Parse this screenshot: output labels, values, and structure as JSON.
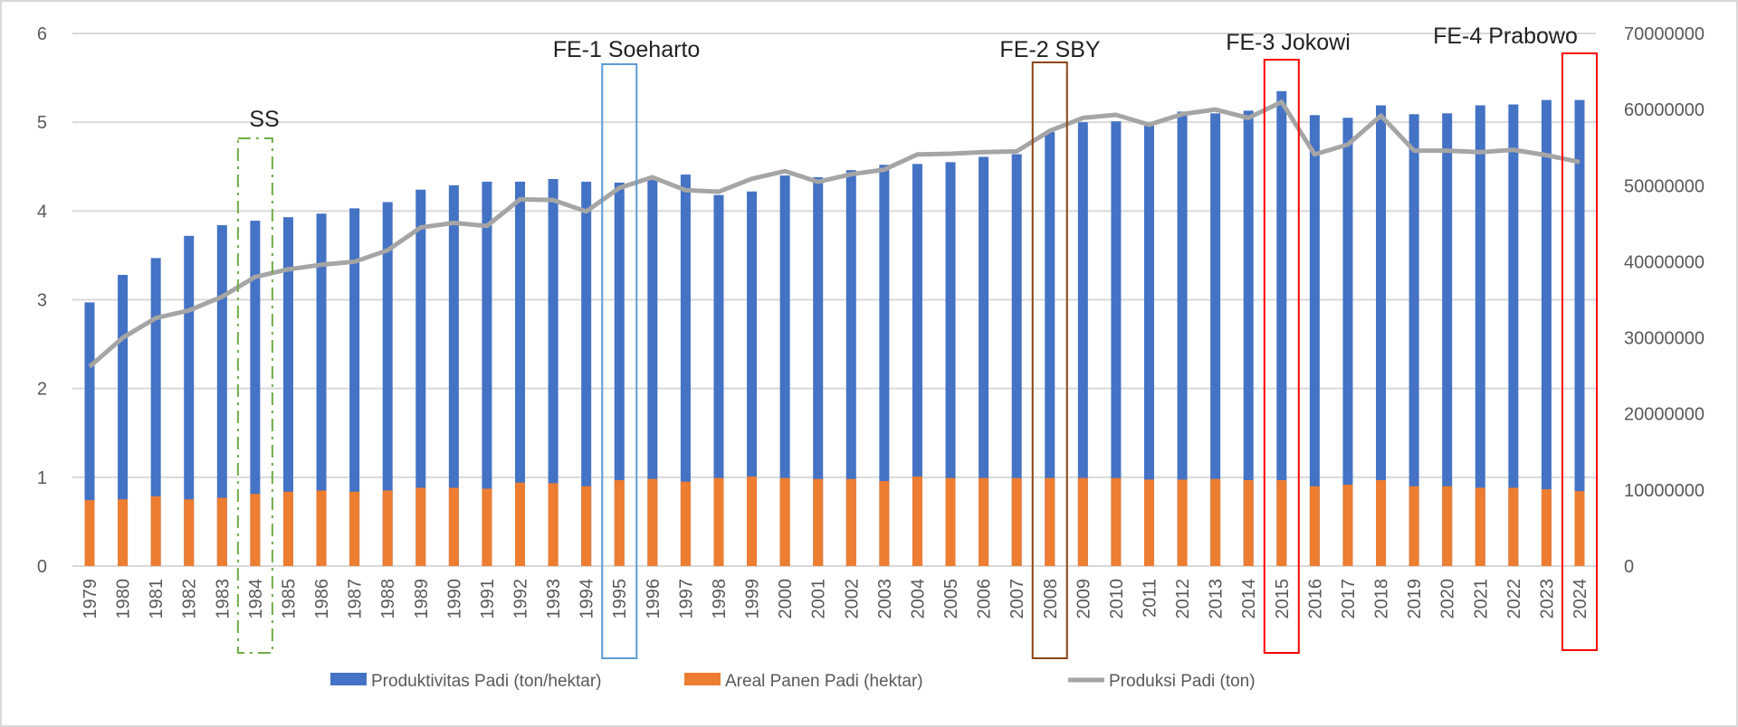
{
  "chart_data": {
    "type": "bar",
    "title": "",
    "xlabel": "",
    "ylabel": "",
    "ylim": [
      0,
      6
    ],
    "y2lim": [
      0,
      70000000
    ],
    "y_ticks": [
      "0",
      "1",
      "2",
      "3",
      "4",
      "5",
      "6"
    ],
    "y2_ticks": [
      "0",
      "10000000",
      "20000000",
      "30000000",
      "40000000",
      "50000000",
      "60000000",
      "70000000"
    ],
    "grid": true,
    "legend_position": "bottom",
    "categories": [
      "1979",
      "1980",
      "1981",
      "1982",
      "1983",
      "1984",
      "1985",
      "1986",
      "1987",
      "1988",
      "1989",
      "1990",
      "1991",
      "1992",
      "1993",
      "1994",
      "1995",
      "1996",
      "1997",
      "1998",
      "1999",
      "2000",
      "2001",
      "2002",
      "2003",
      "2004",
      "2005",
      "2006",
      "2007",
      "2008",
      "2009",
      "2010",
      "2011",
      "2012",
      "2013",
      "2014",
      "2015",
      "2016",
      "2017",
      "2018",
      "2019",
      "2020",
      "2021",
      "2022",
      "2023",
      "2024"
    ],
    "series": [
      {
        "name": "Produktivitas Padi (ton/hektar)",
        "type": "bar",
        "axis": "left",
        "color": "#4472c4",
        "values": [
          2.97,
          3.28,
          3.47,
          3.72,
          3.84,
          3.89,
          3.93,
          3.97,
          4.03,
          4.1,
          4.24,
          4.29,
          4.33,
          4.33,
          4.36,
          4.33,
          4.32,
          4.35,
          4.41,
          4.18,
          4.22,
          4.4,
          4.38,
          4.46,
          4.52,
          4.53,
          4.55,
          4.61,
          4.64,
          4.89,
          5.0,
          5.01,
          4.96,
          5.12,
          5.1,
          5.13,
          5.35,
          5.08,
          5.05,
          5.19,
          5.09,
          5.1,
          5.19,
          5.2,
          5.25,
          5.25
        ]
      },
      {
        "name": "Areal Panen Padi (hektar)",
        "type": "bar",
        "axis": "right",
        "color": "#ed7d31",
        "values": [
          8660000,
          8770000,
          9170000,
          8770000,
          8970000,
          9490000,
          9770000,
          9930000,
          9770000,
          9930000,
          10290000,
          10290000,
          10170000,
          10970000,
          10890000,
          10490000,
          11290000,
          11450000,
          11090000,
          11570000,
          11770000,
          11570000,
          11450000,
          11450000,
          11170000,
          11770000,
          11570000,
          11570000,
          11570000,
          11570000,
          11570000,
          11570000,
          11370000,
          11370000,
          11450000,
          11290000,
          11290000,
          10490000,
          10690000,
          11290000,
          10490000,
          10490000,
          10290000,
          10290000,
          10090000,
          9850000
        ]
      },
      {
        "name": "Produksi Padi (ton)",
        "type": "line",
        "axis": "right",
        "color": "#a5a5a5",
        "values": [
          26200000,
          30000000,
          32600000,
          33600000,
          35400000,
          38000000,
          39000000,
          39600000,
          40000000,
          41500000,
          44500000,
          45100000,
          44700000,
          48200000,
          48100000,
          46600000,
          49700000,
          51100000,
          49400000,
          49200000,
          50900000,
          51900000,
          50500000,
          51500000,
          52100000,
          54100000,
          54200000,
          54400000,
          54500000,
          57200000,
          58900000,
          59300000,
          58000000,
          59400000,
          60000000,
          58900000,
          61000000,
          54100000,
          55400000,
          59200000,
          54600000,
          54600000,
          54400000,
          54700000,
          54000000,
          53100000
        ]
      }
    ],
    "annotations": [
      {
        "label": "SS",
        "year": "1984",
        "color": "#70ad47",
        "style": "dash-dot"
      },
      {
        "label": "FE-1 Soeharto",
        "year": "1995",
        "color": "#5b9bd5",
        "style": "solid"
      },
      {
        "label": "FE-2 SBY",
        "year": "2008",
        "color": "#8b4513",
        "style": "solid"
      },
      {
        "label": "FE-3 Jokowi",
        "year": "2015",
        "color": "#ff0000",
        "style": "solid"
      },
      {
        "label": "FE-4 Prabowo",
        "year": "2024",
        "color": "#ff0000",
        "style": "solid"
      }
    ]
  }
}
